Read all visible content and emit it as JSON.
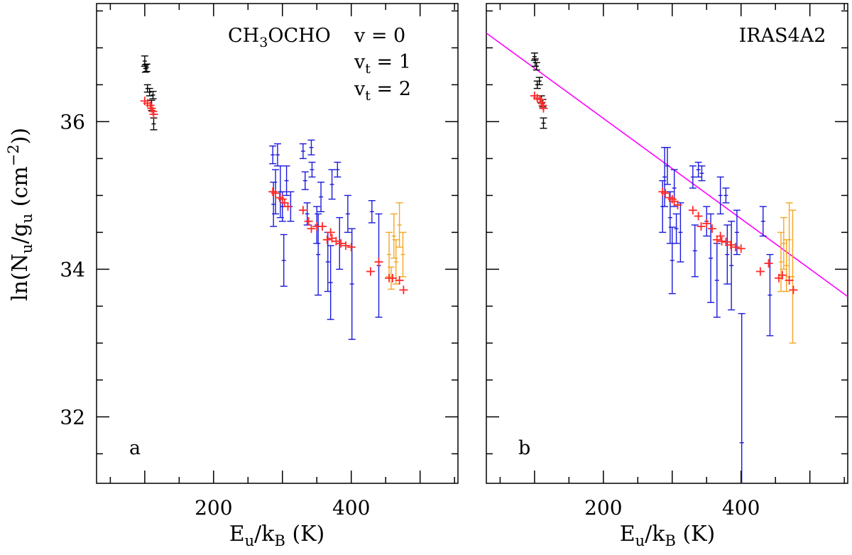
{
  "figure": {
    "ylabel": "ln(N_u/g_u (cm^-2))",
    "xlabel": "E_u/k_B (K)"
  },
  "colors": {
    "v0": "#000000",
    "vt1": "#1a1adc",
    "vt2": "#f5a623",
    "model": "#ff2a2a",
    "fit": "#ff00ff",
    "axis": "#000000"
  },
  "chart_data": [
    {
      "type": "scatter",
      "panel_letter": "a",
      "molecule": "CH3OCHO",
      "legend": [
        {
          "label": "v = 0",
          "color_key": "v0"
        },
        {
          "label": "vt = 1",
          "color_key": "vt1"
        },
        {
          "label": "vt = 2",
          "color_key": "vt2"
        }
      ],
      "xlim": [
        30,
        555
      ],
      "ylim": [
        31.1,
        37.6
      ],
      "xticks": [
        200,
        400
      ],
      "yticks": [
        32,
        34,
        36
      ],
      "series": [
        {
          "name": "v = 0",
          "color_key": "v0",
          "points": [
            {
              "x": 100,
              "y": 36.82,
              "yerr": 0.07
            },
            {
              "x": 101,
              "y": 36.72,
              "yerr": 0.05
            },
            {
              "x": 103,
              "y": 36.73,
              "yerr": 0.05
            },
            {
              "x": 104,
              "y": 36.45,
              "yerr": 0.05
            },
            {
              "x": 107,
              "y": 36.4,
              "yerr": 0.05
            },
            {
              "x": 110,
              "y": 36.22,
              "yerr": 0.07
            },
            {
              "x": 112,
              "y": 36.36,
              "yerr": 0.05
            },
            {
              "x": 113,
              "y": 35.97,
              "yerr": 0.08
            }
          ]
        },
        {
          "name": "vt = 1",
          "color_key": "vt1",
          "points": [
            {
              "x": 286,
              "y": 35.55,
              "yerr": 0.12
            },
            {
              "x": 287,
              "y": 34.88,
              "yerr": 0.3
            },
            {
              "x": 290,
              "y": 35.05,
              "yerr": 0.3
            },
            {
              "x": 293,
              "y": 35.55,
              "yerr": 0.15
            },
            {
              "x": 297,
              "y": 35.05,
              "yerr": 0.35
            },
            {
              "x": 300,
              "y": 34.85,
              "yerr": 0.2
            },
            {
              "x": 302,
              "y": 34.12,
              "yerr": 0.35
            },
            {
              "x": 306,
              "y": 35.2,
              "yerr": 0.2
            },
            {
              "x": 312,
              "y": 34.85,
              "yerr": 0.2
            },
            {
              "x": 330,
              "y": 35.6,
              "yerr": 0.1
            },
            {
              "x": 333,
              "y": 35.2,
              "yerr": 0.12
            },
            {
              "x": 336,
              "y": 34.75,
              "yerr": 0.15
            },
            {
              "x": 342,
              "y": 35.65,
              "yerr": 0.1
            },
            {
              "x": 343,
              "y": 35.35,
              "yerr": 0.1
            },
            {
              "x": 350,
              "y": 34.6,
              "yerr": 0.25
            },
            {
              "x": 352,
              "y": 34.2,
              "yerr": 0.55
            },
            {
              "x": 356,
              "y": 34.98,
              "yerr": 0.2
            },
            {
              "x": 366,
              "y": 34.1,
              "yerr": 0.4
            },
            {
              "x": 370,
              "y": 33.82,
              "yerr": 0.5
            },
            {
              "x": 372,
              "y": 35.15,
              "yerr": 0.2
            },
            {
              "x": 380,
              "y": 35.35,
              "yerr": 0.1
            },
            {
              "x": 383,
              "y": 34.35,
              "yerr": 0.35
            },
            {
              "x": 395,
              "y": 34.75,
              "yerr": 0.25
            },
            {
              "x": 401,
              "y": 33.8,
              "yerr": 0.75
            },
            {
              "x": 430,
              "y": 34.78,
              "yerr": 0.15
            },
            {
              "x": 440,
              "y": 34.05,
              "yerr": 0.7
            }
          ]
        },
        {
          "name": "vt = 2",
          "color_key": "vt2",
          "points": [
            {
              "x": 455,
              "y": 34.2,
              "yerr": 0.3
            },
            {
              "x": 458,
              "y": 33.88,
              "yerr": 0.15
            },
            {
              "x": 462,
              "y": 34.45,
              "yerr": 0.3
            },
            {
              "x": 465,
              "y": 34.1,
              "yerr": 0.3
            },
            {
              "x": 470,
              "y": 34.6,
              "yerr": 0.3
            },
            {
              "x": 475,
              "y": 34.2,
              "yerr": 0.3
            }
          ]
        },
        {
          "name": "model",
          "color_key": "model",
          "points": [
            {
              "x": 100,
              "y": 36.28
            },
            {
              "x": 104,
              "y": 36.25
            },
            {
              "x": 108,
              "y": 36.22
            },
            {
              "x": 110,
              "y": 36.18
            },
            {
              "x": 112,
              "y": 36.14
            },
            {
              "x": 113,
              "y": 36.1
            },
            {
              "x": 286,
              "y": 35.05
            },
            {
              "x": 290,
              "y": 35.03
            },
            {
              "x": 296,
              "y": 34.97
            },
            {
              "x": 300,
              "y": 34.95
            },
            {
              "x": 303,
              "y": 34.9
            },
            {
              "x": 308,
              "y": 34.85
            },
            {
              "x": 330,
              "y": 34.8
            },
            {
              "x": 338,
              "y": 34.65
            },
            {
              "x": 342,
              "y": 34.55
            },
            {
              "x": 350,
              "y": 34.58
            },
            {
              "x": 358,
              "y": 34.58
            },
            {
              "x": 365,
              "y": 34.4
            },
            {
              "x": 370,
              "y": 34.5
            },
            {
              "x": 372,
              "y": 34.42
            },
            {
              "x": 378,
              "y": 34.38
            },
            {
              "x": 385,
              "y": 34.35
            },
            {
              "x": 392,
              "y": 34.32
            },
            {
              "x": 400,
              "y": 34.3
            },
            {
              "x": 428,
              "y": 33.97
            },
            {
              "x": 440,
              "y": 34.1
            },
            {
              "x": 455,
              "y": 33.88
            },
            {
              "x": 460,
              "y": 33.88
            },
            {
              "x": 470,
              "y": 33.85
            },
            {
              "x": 476,
              "y": 33.72
            }
          ]
        }
      ]
    },
    {
      "type": "scatter",
      "panel_letter": "b",
      "source": "IRAS4A2",
      "xlim": [
        30,
        555
      ],
      "ylim": [
        31.1,
        37.6
      ],
      "xticks": [
        200,
        400
      ],
      "yticks": [
        32,
        34,
        36
      ],
      "fit_line": {
        "color_key": "fit",
        "x": [
          30,
          555
        ],
        "y": [
          37.2,
          33.63
        ]
      },
      "series": [
        {
          "name": "v = 0",
          "color_key": "v0",
          "points": [
            {
              "x": 100,
              "y": 36.88,
              "yerr": 0.05
            },
            {
              "x": 101,
              "y": 36.8,
              "yerr": 0.05
            },
            {
              "x": 103,
              "y": 36.75,
              "yerr": 0.05
            },
            {
              "x": 104,
              "y": 36.5,
              "yerr": 0.05
            },
            {
              "x": 107,
              "y": 36.55,
              "yerr": 0.05
            },
            {
              "x": 110,
              "y": 36.3,
              "yerr": 0.05
            },
            {
              "x": 112,
              "y": 36.25,
              "yerr": 0.05
            },
            {
              "x": 113,
              "y": 35.98,
              "yerr": 0.07
            }
          ]
        },
        {
          "name": "vt = 1",
          "color_key": "vt1",
          "points": [
            {
              "x": 286,
              "y": 34.85,
              "yerr": 0.35
            },
            {
              "x": 289,
              "y": 35.25,
              "yerr": 0.4
            },
            {
              "x": 293,
              "y": 35.4,
              "yerr": 0.25
            },
            {
              "x": 297,
              "y": 34.7,
              "yerr": 0.35
            },
            {
              "x": 300,
              "y": 34.12,
              "yerr": 0.45
            },
            {
              "x": 303,
              "y": 35.1,
              "yerr": 0.25
            },
            {
              "x": 306,
              "y": 34.55,
              "yerr": 0.2
            },
            {
              "x": 312,
              "y": 34.5,
              "yerr": 0.4
            },
            {
              "x": 330,
              "y": 35.25,
              "yerr": 0.15
            },
            {
              "x": 333,
              "y": 34.25,
              "yerr": 0.35
            },
            {
              "x": 338,
              "y": 35.35,
              "yerr": 0.1
            },
            {
              "x": 343,
              "y": 35.3,
              "yerr": 0.1
            },
            {
              "x": 350,
              "y": 34.65,
              "yerr": 0.2
            },
            {
              "x": 356,
              "y": 34.15,
              "yerr": 0.6
            },
            {
              "x": 365,
              "y": 33.85,
              "yerr": 0.5
            },
            {
              "x": 370,
              "y": 35.0,
              "yerr": 0.25
            },
            {
              "x": 378,
              "y": 35.0,
              "yerr": 0.1
            },
            {
              "x": 380,
              "y": 34.2,
              "yerr": 0.4
            },
            {
              "x": 386,
              "y": 34.05,
              "yerr": 0.6
            },
            {
              "x": 394,
              "y": 34.5,
              "yerr": 0.3
            },
            {
              "x": 401,
              "y": 31.65,
              "yerr": 1.75
            },
            {
              "x": 432,
              "y": 34.65,
              "yerr": 0.2
            },
            {
              "x": 442,
              "y": 33.65,
              "yerr": 0.55
            }
          ]
        },
        {
          "name": "vt = 2",
          "color_key": "vt2",
          "points": [
            {
              "x": 458,
              "y": 34.1,
              "yerr": 0.4
            },
            {
              "x": 462,
              "y": 34.35,
              "yerr": 0.35
            },
            {
              "x": 466,
              "y": 34.05,
              "yerr": 0.35
            },
            {
              "x": 470,
              "y": 34.4,
              "yerr": 0.5
            },
            {
              "x": 475,
              "y": 33.9,
              "yerr": 0.9
            }
          ]
        },
        {
          "name": "model",
          "color_key": "model",
          "points": [
            {
              "x": 100,
              "y": 36.35
            },
            {
              "x": 104,
              "y": 36.32
            },
            {
              "x": 108,
              "y": 36.3
            },
            {
              "x": 110,
              "y": 36.26
            },
            {
              "x": 112,
              "y": 36.22
            },
            {
              "x": 113,
              "y": 36.18
            },
            {
              "x": 286,
              "y": 35.05
            },
            {
              "x": 290,
              "y": 35.03
            },
            {
              "x": 296,
              "y": 34.97
            },
            {
              "x": 300,
              "y": 34.95
            },
            {
              "x": 303,
              "y": 34.92
            },
            {
              "x": 308,
              "y": 34.87
            },
            {
              "x": 330,
              "y": 34.8
            },
            {
              "x": 338,
              "y": 34.72
            },
            {
              "x": 342,
              "y": 34.58
            },
            {
              "x": 350,
              "y": 34.62
            },
            {
              "x": 358,
              "y": 34.55
            },
            {
              "x": 365,
              "y": 34.4
            },
            {
              "x": 370,
              "y": 34.45
            },
            {
              "x": 372,
              "y": 34.38
            },
            {
              "x": 378,
              "y": 34.37
            },
            {
              "x": 385,
              "y": 34.33
            },
            {
              "x": 392,
              "y": 34.3
            },
            {
              "x": 400,
              "y": 34.28
            },
            {
              "x": 428,
              "y": 33.97
            },
            {
              "x": 440,
              "y": 34.08
            },
            {
              "x": 455,
              "y": 33.88
            },
            {
              "x": 460,
              "y": 33.92
            },
            {
              "x": 470,
              "y": 33.85
            },
            {
              "x": 476,
              "y": 33.72
            }
          ]
        }
      ]
    }
  ]
}
